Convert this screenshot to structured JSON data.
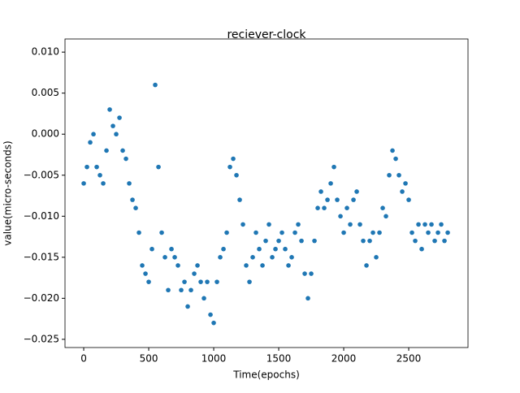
{
  "chart_data": {
    "type": "scatter",
    "title": "reciever-clock",
    "x_label": "Time(epochs)",
    "y_label": "value(micro-seconds)",
    "x": [
      0,
      25,
      50,
      75,
      100,
      125,
      150,
      175,
      200,
      225,
      250,
      275,
      300,
      325,
      350,
      375,
      400,
      425,
      450,
      475,
      500,
      525,
      550,
      575,
      600,
      625,
      650,
      675,
      700,
      725,
      750,
      775,
      800,
      825,
      850,
      875,
      900,
      925,
      950,
      975,
      1000,
      1025,
      1050,
      1075,
      1100,
      1125,
      1150,
      1175,
      1200,
      1225,
      1250,
      1275,
      1300,
      1325,
      1350,
      1375,
      1400,
      1425,
      1450,
      1475,
      1500,
      1525,
      1550,
      1575,
      1600,
      1625,
      1650,
      1675,
      1700,
      1725,
      1750,
      1775,
      1800,
      1825,
      1850,
      1875,
      1900,
      1925,
      1950,
      1975,
      2000,
      2025,
      2050,
      2075,
      2100,
      2125,
      2150,
      2175,
      2200,
      2225,
      2250,
      2275,
      2300,
      2325,
      2350,
      2375,
      2400,
      2425,
      2450,
      2475,
      2500,
      2525,
      2550,
      2575,
      2600,
      2625,
      2650,
      2675,
      2700,
      2725,
      2750,
      2775,
      2800
    ],
    "series": [
      {
        "color": "#1f77b4",
        "values": [
          -0.006,
          -0.004,
          -0.001,
          0.0,
          -0.004,
          -0.005,
          -0.006,
          -0.002,
          0.003,
          0.001,
          0.0,
          0.002,
          -0.002,
          -0.003,
          -0.006,
          -0.008,
          -0.009,
          -0.012,
          -0.016,
          -0.017,
          -0.018,
          -0.014,
          0.006,
          -0.004,
          -0.012,
          -0.015,
          -0.019,
          -0.014,
          -0.015,
          -0.016,
          -0.019,
          -0.018,
          -0.021,
          -0.019,
          -0.017,
          -0.016,
          -0.018,
          -0.02,
          -0.018,
          -0.022,
          -0.023,
          -0.018,
          -0.015,
          -0.014,
          -0.012,
          -0.004,
          -0.003,
          -0.005,
          -0.008,
          -0.011,
          -0.016,
          -0.018,
          -0.015,
          -0.012,
          -0.014,
          -0.016,
          -0.013,
          -0.011,
          -0.015,
          -0.014,
          -0.013,
          -0.012,
          -0.014,
          -0.016,
          -0.015,
          -0.012,
          -0.011,
          -0.013,
          -0.017,
          -0.02,
          -0.017,
          -0.013,
          -0.009,
          -0.007,
          -0.009,
          -0.008,
          -0.006,
          -0.004,
          -0.008,
          -0.01,
          -0.012,
          -0.009,
          -0.011,
          -0.008,
          -0.007,
          -0.011,
          -0.013,
          -0.016,
          -0.013,
          -0.012,
          -0.015,
          -0.012,
          -0.009,
          -0.01,
          -0.005,
          -0.002,
          -0.003,
          -0.005,
          -0.007,
          -0.006,
          -0.008,
          -0.012,
          -0.013,
          -0.011,
          -0.014,
          -0.011,
          -0.012,
          -0.011,
          -0.013,
          -0.012,
          -0.011,
          -0.013,
          -0.012
        ]
      }
    ],
    "xlim": [
      -144,
      2956
    ],
    "ylim": [
      -0.026,
      0.0116
    ],
    "xticks": [
      0,
      500,
      1000,
      1500,
      2000,
      2500
    ],
    "yticks": [
      {
        "value": -0.025,
        "label": "−0.025"
      },
      {
        "value": -0.02,
        "label": "−0.020"
      },
      {
        "value": -0.015,
        "label": "−0.015"
      },
      {
        "value": -0.01,
        "label": "−0.010"
      },
      {
        "value": -0.005,
        "label": "−0.005"
      },
      {
        "value": 0,
        "label": "0.000"
      },
      {
        "value": 0.005,
        "label": "0.005"
      },
      {
        "value": 0.01,
        "label": "0.010"
      }
    ]
  }
}
